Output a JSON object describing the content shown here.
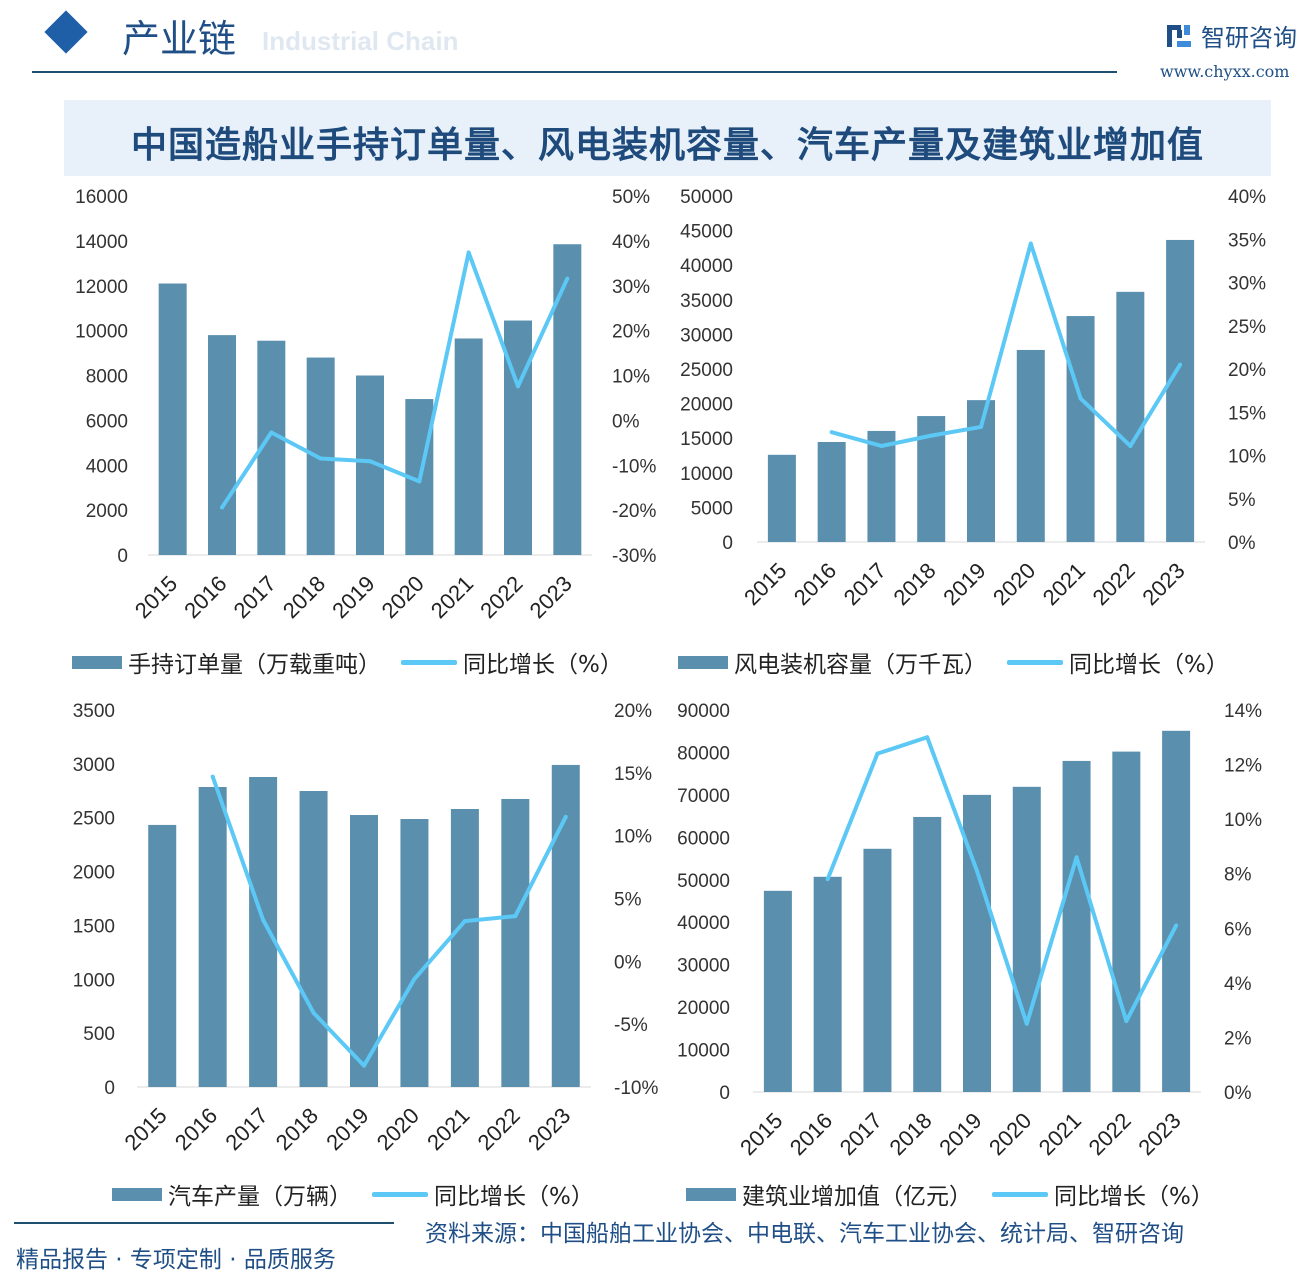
{
  "header": {
    "section": "产业链",
    "section_en": "Industrial Chain",
    "brand": "智研咨询",
    "url": "www.chyxx.com"
  },
  "title": "中国造船业手持订单量、风电装机容量、汽车产量及建筑业增加值",
  "colors": {
    "bar": "#5b8fae",
    "line": "#5bc8f5",
    "title_bg": "#e8f1fa",
    "brand": "#1f4f86"
  },
  "chart_data": [
    {
      "type": "bar+line",
      "categories": [
        "2015",
        "2016",
        "2017",
        "2018",
        "2019",
        "2020",
        "2021",
        "2022",
        "2023"
      ],
      "series": [
        {
          "name": "手持订单量（万载重吨）",
          "type": "bar",
          "axis": "left",
          "values": [
            12100,
            9800,
            9550,
            8800,
            8000,
            6950,
            9650,
            10450,
            13850
          ]
        },
        {
          "name": "同比增长（%）",
          "type": "line",
          "axis": "right",
          "values": [
            null,
            -19.4,
            -2.7,
            -8.5,
            -9.1,
            -13.6,
            37.4,
            7.6,
            31.6
          ]
        }
      ],
      "left_axis": {
        "ylim": [
          0,
          16000
        ],
        "ticks": [
          "0",
          "2000",
          "4000",
          "6000",
          "8000",
          "10000",
          "12000",
          "14000",
          "16000"
        ]
      },
      "right_axis": {
        "ylim": [
          -30,
          50
        ],
        "ticks": [
          "-30%",
          "-20%",
          "-10%",
          "0%",
          "10%",
          "20%",
          "30%",
          "40%",
          "50%"
        ]
      },
      "grid": false,
      "legend": "bottom"
    },
    {
      "type": "bar+line",
      "categories": [
        "2015",
        "2016",
        "2017",
        "2018",
        "2019",
        "2020",
        "2021",
        "2022",
        "2023"
      ],
      "series": [
        {
          "name": "风电装机容量（万千瓦）",
          "type": "bar",
          "axis": "left",
          "values": [
            12600,
            14450,
            16050,
            18200,
            20500,
            27750,
            32650,
            36150,
            43650
          ]
        },
        {
          "name": "同比增长（%）",
          "type": "line",
          "axis": "right",
          "values": [
            null,
            12.7,
            11.1,
            12.3,
            13.3,
            34.5,
            16.6,
            11.1,
            20.5
          ]
        }
      ],
      "left_axis": {
        "ylim": [
          0,
          50000
        ],
        "ticks": [
          "0",
          "5000",
          "10000",
          "15000",
          "20000",
          "25000",
          "30000",
          "35000",
          "40000",
          "45000",
          "50000"
        ]
      },
      "right_axis": {
        "ylim": [
          0,
          40
        ],
        "ticks": [
          "0%",
          "5%",
          "10%",
          "15%",
          "20%",
          "25%",
          "30%",
          "35%",
          "40%"
        ]
      },
      "grid": false,
      "legend": "bottom"
    },
    {
      "type": "bar+line",
      "categories": [
        "2015",
        "2016",
        "2017",
        "2018",
        "2019",
        "2020",
        "2021",
        "2022",
        "2023"
      ],
      "series": [
        {
          "name": "汽车产量（万辆）",
          "type": "bar",
          "axis": "left",
          "values": [
            2433,
            2785,
            2878,
            2748,
            2525,
            2488,
            2581,
            2674,
            2990
          ]
        },
        {
          "name": "同比增长（%）",
          "type": "line",
          "axis": "right",
          "values": [
            null,
            14.7,
            3.3,
            -4.1,
            -8.3,
            -1.4,
            3.2,
            3.6,
            11.5
          ]
        }
      ],
      "left_axis": {
        "ylim": [
          0,
          3500
        ],
        "ticks": [
          "0",
          "500",
          "1000",
          "1500",
          "2000",
          "2500",
          "3000",
          "3500"
        ]
      },
      "right_axis": {
        "ylim": [
          -10,
          20
        ],
        "ticks": [
          "-10%",
          "-5%",
          "0%",
          "5%",
          "10%",
          "15%",
          "20%"
        ]
      },
      "grid": false,
      "legend": "bottom"
    },
    {
      "type": "bar+line",
      "categories": [
        "2015",
        "2016",
        "2017",
        "2018",
        "2019",
        "2020",
        "2021",
        "2022",
        "2023"
      ],
      "series": [
        {
          "name": "建筑业增加值（亿元）",
          "type": "bar",
          "axis": "left",
          "values": [
            47400,
            50700,
            57300,
            64800,
            70000,
            71900,
            78000,
            80200,
            85100
          ]
        },
        {
          "name": "同比增长（%）",
          "type": "line",
          "axis": "right",
          "values": [
            null,
            7.8,
            12.4,
            13.0,
            8.1,
            2.5,
            8.6,
            2.6,
            6.1
          ]
        }
      ],
      "left_axis": {
        "ylim": [
          0,
          90000
        ],
        "ticks": [
          "0",
          "10000",
          "20000",
          "30000",
          "40000",
          "50000",
          "60000",
          "70000",
          "80000",
          "90000"
        ]
      },
      "right_axis": {
        "ylim": [
          0,
          14
        ],
        "ticks": [
          "0%",
          "2%",
          "4%",
          "6%",
          "8%",
          "10%",
          "12%",
          "14%"
        ]
      },
      "grid": false,
      "legend": "bottom"
    }
  ],
  "footer": {
    "slogan": "精品报告 · 专项定制 · 品质服务",
    "source": "资料来源：中国船舶工业协会、中电联、汽车工业协会、统计局、智研咨询"
  }
}
